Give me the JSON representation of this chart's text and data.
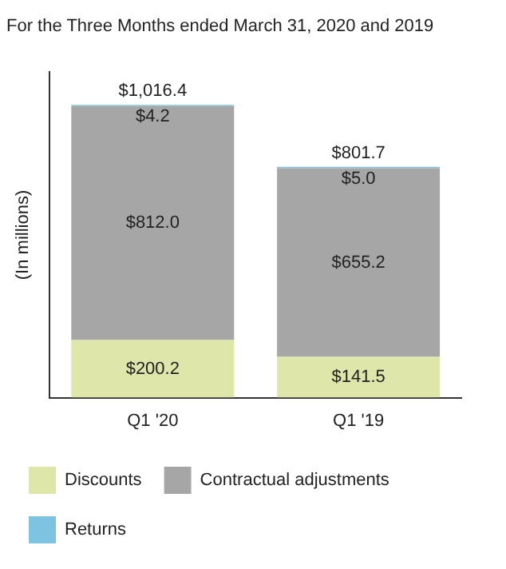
{
  "chart_data": {
    "type": "bar",
    "stacked": true,
    "title": "For the Three Months ended March 31, 2020 and 2019",
    "ylabel": "(In millions)",
    "categories": [
      "Q1 '20",
      "Q1 '19"
    ],
    "series": [
      {
        "name": "Discounts",
        "color": "#dfe6a9",
        "values": [
          200.2,
          141.5
        ],
        "value_labels": [
          "$200.2",
          "$141.5"
        ]
      },
      {
        "name": "Contractual adjustments",
        "color": "#a6a6a6",
        "values": [
          812.0,
          655.2
        ],
        "value_labels": [
          "$812.0",
          "$655.2"
        ]
      },
      {
        "name": "Returns",
        "color": "#7fc3e3",
        "values": [
          4.2,
          5.0
        ],
        "value_labels": [
          "$4.2",
          "$5.0"
        ]
      }
    ],
    "totals": [
      "$1,016.4",
      "$801.7"
    ],
    "ylim": [
      0,
      1130
    ],
    "tick_labels": "x",
    "grid": false,
    "legend": "bottom"
  }
}
